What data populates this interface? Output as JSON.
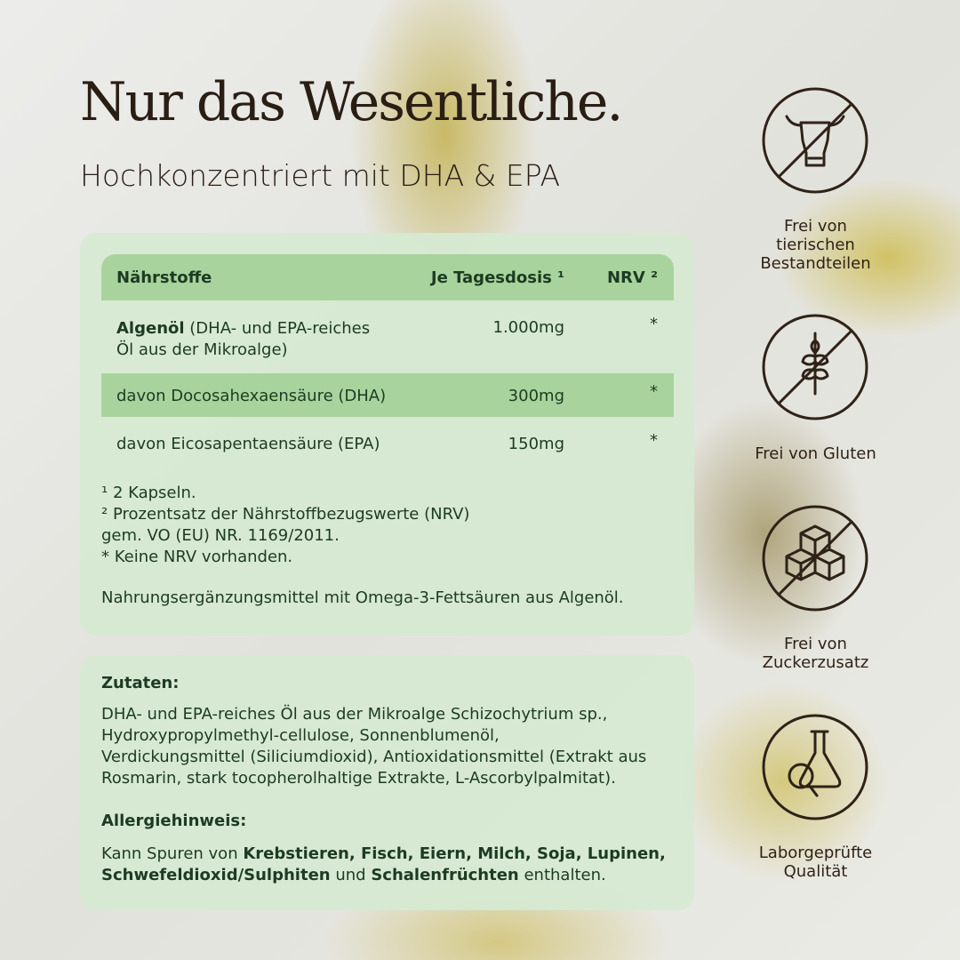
{
  "header": {
    "title": "Nur das Wesentliche.",
    "subtitle": "Hochkonzentriert mit DHA & EPA"
  },
  "table": {
    "header": [
      "Nährstoffe",
      "Je Tagesdosis ¹",
      "NRV ²"
    ],
    "rows": [
      [
        [
          "Algenöl",
          "(DHA- und EPA-reiches",
          "Öl aus der Mikroalge)"
        ],
        "1.000mg",
        "*"
      ],
      [
        [
          "davon Docosahexaensäure (DHA)"
        ],
        "300mg",
        "*"
      ],
      [
        [
          "davon Eicosapentaensäure (EPA)"
        ],
        "150mg",
        "*"
      ]
    ],
    "footnotes": [
      "¹ 2 Kapseln.",
      "² Prozentsatz der Nährstoffbezugswerte (NRV)",
      "gem. VO (EU) NR. 1169/2011.",
      "* Keine NRV vorhanden."
    ],
    "note": "Nahrungsergänzungsmittel mit Omega-3-Fettsäuren aus Algenöl."
  },
  "ingredients": {
    "title": "Zutaten:",
    "lines": [
      "DHA- und EPA-reiches Öl aus der Mikroalge Schizochytrium sp.,",
      "Hydroxypropylmethyl-cellulose, Sonnenblumenöl,",
      "Verdickungsmittel (Siliciumdioxid), Antioxidationsmittel (Extrakt aus",
      "Rosmarin, stark tocopherolhaltige Extrakte, L-Ascorbylpalmitat)."
    ]
  },
  "allergy": {
    "title": "Allergiehinweis:",
    "segments": [
      "Kann Spuren von",
      "Krebstieren, Fisch, Eiern, Milch, Soja, Lupinen,",
      "Schwefeldioxid/Sulphiten",
      "und",
      "Schalenfrüchten",
      "enthalten."
    ]
  },
  "badges": [
    {
      "lines": [
        "Frei von",
        "tierischen",
        "Bestandteilen"
      ]
    },
    {
      "lines": [
        "Frei von Gluten"
      ]
    },
    {
      "lines": [
        "Frei von",
        "Zuckerzusatz"
      ]
    },
    {
      "lines": [
        "Laborgeprüfte",
        "Qualität"
      ]
    }
  ]
}
